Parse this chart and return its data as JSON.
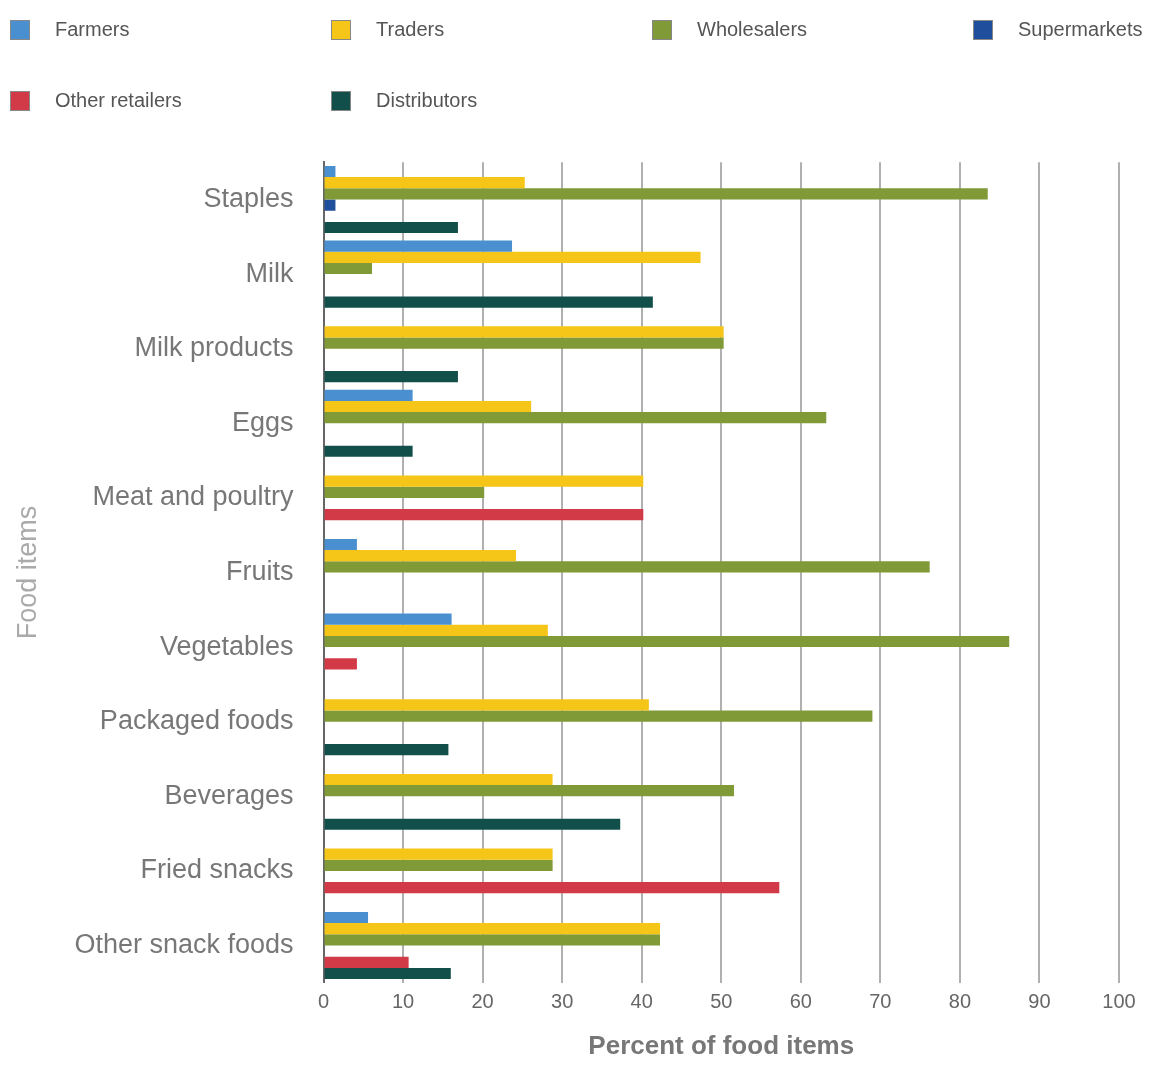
{
  "chart_data": {
    "type": "bar",
    "orientation": "horizontal",
    "xlabel": "Percent of food items",
    "ylabel": "Food items",
    "categories": [
      "Staples",
      "Milk",
      "Milk products",
      "Eggs",
      "Meat and poultry",
      "Fruits",
      "Vegetables",
      "Packaged foods",
      "Beverages",
      "Fried snacks",
      "Other snack foods"
    ],
    "series": [
      {
        "name": "Farmers",
        "color": "#4a90d0",
        "values": [
          1.5,
          23.7,
          null,
          11.2,
          null,
          4.2,
          16.1,
          null,
          null,
          null,
          5.6
        ]
      },
      {
        "name": "Traders",
        "color": "#f5c518",
        "values": [
          25.3,
          47.4,
          50.3,
          26.1,
          40.2,
          24.2,
          28.2,
          40.9,
          28.8,
          28.8,
          42.3
        ]
      },
      {
        "name": "Wholesalers",
        "color": "#7f9a36",
        "values": [
          83.5,
          6.1,
          50.3,
          63.2,
          20.2,
          76.2,
          86.2,
          69.0,
          51.6,
          28.8,
          42.3
        ]
      },
      {
        "name": "Supermarkets",
        "color": "#1f4e9c",
        "values": [
          1.5,
          null,
          null,
          null,
          null,
          null,
          null,
          null,
          null,
          null,
          null
        ]
      },
      {
        "name": "Other retailers",
        "color": "#d23a48",
        "values": [
          null,
          null,
          null,
          null,
          40.2,
          null,
          4.2,
          null,
          null,
          57.3,
          10.7
        ]
      },
      {
        "name": "Distributors",
        "color": "#134f4a",
        "values": [
          16.9,
          41.4,
          16.9,
          11.2,
          null,
          null,
          null,
          15.7,
          37.3,
          null,
          16.0
        ]
      }
    ],
    "xlim": [
      0,
      100
    ],
    "xticks": [
      0,
      10,
      20,
      30,
      40,
      50,
      60,
      70,
      80,
      90,
      100
    ],
    "grid": "x",
    "legend": "top"
  }
}
